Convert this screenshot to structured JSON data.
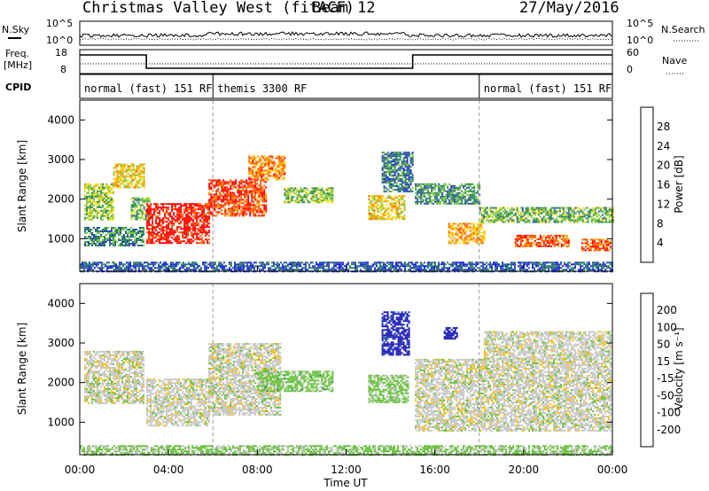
{
  "header": {
    "title": "Christmas Valley West (fitACF)",
    "beam": "Beam 12",
    "date": "27/May/2016"
  },
  "noise_panel": {
    "left_label": "N.Sky",
    "right_label": "N.Search",
    "left_ticks": [
      "10^5",
      "10^0"
    ],
    "right_ticks": [
      "10^5",
      "10^0"
    ]
  },
  "freq_panel": {
    "left_label_1": "Freq.",
    "left_label_2": "[MHz]",
    "left_ticks": [
      "18",
      "8"
    ],
    "right_label": "Nave",
    "right_ticks": [
      "60",
      "0"
    ],
    "freq_steps": [
      {
        "from_hour": 0,
        "to_hour": 3.0,
        "mhz": 16
      },
      {
        "from_hour": 3.0,
        "to_hour": 15.0,
        "mhz": 10
      },
      {
        "from_hour": 15.0,
        "to_hour": 24.0,
        "mhz": 16
      }
    ]
  },
  "cpid": {
    "label": "CPID",
    "segments": [
      {
        "label": "normal (fast) 151 RF",
        "start_hour": 0
      },
      {
        "label": "themis 3300 RF",
        "start_hour": 6
      },
      {
        "label": "normal (fast) 151 RF",
        "start_hour": 18
      }
    ]
  },
  "axes": {
    "ylabel": "Slant Range [km]",
    "xlabel": "Time UT",
    "x_ticks": [
      "00:00",
      "04:00",
      "08:00",
      "12:00",
      "16:00",
      "20:00",
      "00:00"
    ],
    "y_ticks": [
      "1000",
      "2000",
      "3000",
      "4000"
    ],
    "x_range_hours": [
      0,
      24
    ],
    "y_range_km": [
      180,
      4500
    ]
  },
  "colorbars": {
    "power": {
      "label": "Power [dB]",
      "ticks": [
        "4",
        "8",
        "12",
        "16",
        "20",
        "24",
        "28"
      ],
      "colors": [
        "#1a1aff",
        "#2f4fb0",
        "#2e8b57",
        "#7ac943",
        "#f5dc1e",
        "#ff9f00",
        "#ff5a00",
        "#ff0000"
      ]
    },
    "velocity": {
      "label": "Velocity [m s⁻¹]",
      "ticks": [
        "200",
        "100",
        "50",
        "15",
        "-15",
        "-50",
        "-100",
        "-200"
      ],
      "colors": [
        "#1a1ab8",
        "#2a70b0",
        "#2e8b57",
        "#67c23a",
        "#c8c8c8",
        "#ffbf00",
        "#ff8a00",
        "#ff4a00",
        "#ff0000"
      ]
    }
  },
  "chart_data": {
    "type": "heatmap",
    "title": "Christmas Valley West (fitACF)",
    "xlabel": "Time UT",
    "ylabel": "Slant Range [km]",
    "x_range_hours": [
      0,
      24
    ],
    "y_range_km": [
      180,
      4500
    ],
    "panels": [
      {
        "name": "Power [dB]",
        "color_range": [
          0,
          30
        ],
        "regions": [
          {
            "t0": 0.2,
            "t1": 1.5,
            "r_lo": 1500,
            "r_hi": 2400,
            "dB": 14
          },
          {
            "t0": 1.5,
            "t1": 2.9,
            "r_lo": 2300,
            "r_hi": 2900,
            "dB": 18
          },
          {
            "t0": 0.2,
            "t1": 2.9,
            "r_lo": 850,
            "r_hi": 1300,
            "dB": 9
          },
          {
            "t0": 2.3,
            "t1": 3.1,
            "r_lo": 1500,
            "r_hi": 2050,
            "dB": 12
          },
          {
            "t0": 3.0,
            "t1": 5.8,
            "r_lo": 900,
            "r_hi": 1900,
            "dB": 28
          },
          {
            "t0": 5.8,
            "t1": 8.4,
            "r_lo": 1600,
            "r_hi": 2500,
            "dB": 26
          },
          {
            "t0": 7.6,
            "t1": 9.2,
            "r_lo": 2500,
            "r_hi": 3100,
            "dB": 22
          },
          {
            "t0": 9.2,
            "t1": 11.4,
            "r_lo": 1900,
            "r_hi": 2300,
            "dB": 13
          },
          {
            "t0": 13.0,
            "t1": 14.6,
            "r_lo": 1500,
            "r_hi": 2100,
            "dB": 18
          },
          {
            "t0": 13.6,
            "t1": 15.0,
            "r_lo": 2200,
            "r_hi": 3200,
            "dB": 8
          },
          {
            "t0": 15.1,
            "t1": 18.0,
            "r_lo": 1900,
            "r_hi": 2400,
            "dB": 10
          },
          {
            "t0": 16.6,
            "t1": 18.2,
            "r_lo": 900,
            "r_hi": 1400,
            "dB": 20
          },
          {
            "t0": 18.0,
            "t1": 24.0,
            "r_lo": 1400,
            "r_hi": 1800,
            "dB": 12
          },
          {
            "t0": 19.6,
            "t1": 22.0,
            "r_lo": 800,
            "r_hi": 1100,
            "dB": 25
          },
          {
            "t0": 22.6,
            "t1": 23.9,
            "r_lo": 700,
            "r_hi": 1000,
            "dB": 24
          },
          {
            "t0": 0.0,
            "t1": 24.0,
            "r_lo": 180,
            "r_hi": 420,
            "dB": 6
          }
        ]
      },
      {
        "name": "Velocity [m s^-1]",
        "color_range": [
          -200,
          200
        ],
        "regions": [
          {
            "t0": 0.2,
            "t1": 2.9,
            "r_lo": 1500,
            "r_hi": 2800,
            "v": 0
          },
          {
            "t0": 3.0,
            "t1": 5.8,
            "r_lo": 900,
            "r_hi": 2100,
            "v": 0
          },
          {
            "t0": 5.8,
            "t1": 9.0,
            "r_lo": 1200,
            "r_hi": 3000,
            "v": 0
          },
          {
            "t0": 8.0,
            "t1": 11.4,
            "r_lo": 1800,
            "r_hi": 2300,
            "v": 40
          },
          {
            "t0": 13.0,
            "t1": 14.8,
            "r_lo": 1500,
            "r_hi": 2200,
            "v": 35
          },
          {
            "t0": 13.6,
            "t1": 14.8,
            "r_lo": 2700,
            "r_hi": 3800,
            "v": 180
          },
          {
            "t0": 16.4,
            "t1": 17.0,
            "r_lo": 3100,
            "r_hi": 3400,
            "v": 200
          },
          {
            "t0": 15.1,
            "t1": 23.9,
            "r_lo": 800,
            "r_hi": 2600,
            "v": 0
          },
          {
            "t0": 18.2,
            "t1": 23.9,
            "r_lo": 2600,
            "r_hi": 3300,
            "v": 0
          },
          {
            "t0": 0.0,
            "t1": 24.0,
            "r_lo": 180,
            "r_hi": 420,
            "v": 30
          }
        ]
      }
    ]
  }
}
